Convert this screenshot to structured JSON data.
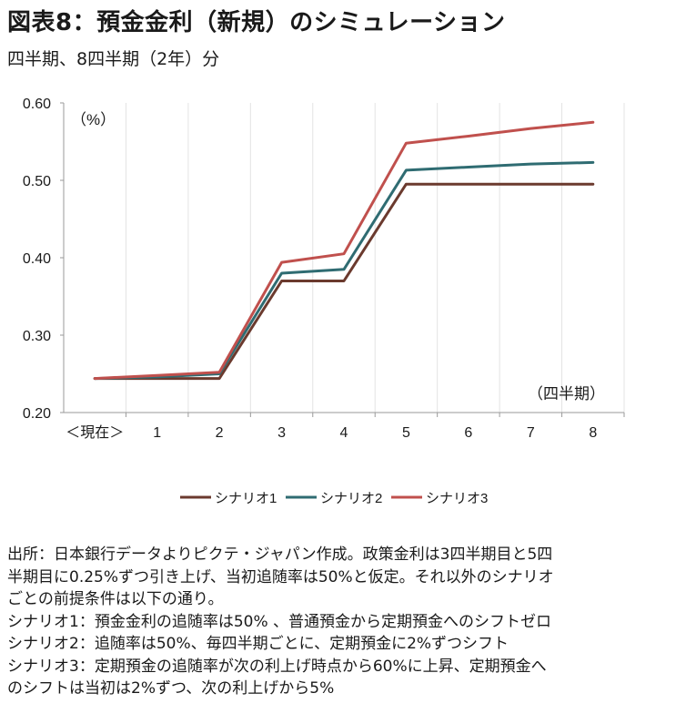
{
  "title": "図表8：預金金利（新規）のシミュレーション",
  "subtitle": "四半期、8四半期（2年）分",
  "chart_data": {
    "type": "line",
    "x": [
      "＜現在＞",
      "1",
      "2",
      "3",
      "4",
      "5",
      "6",
      "7",
      "8"
    ],
    "ylim": [
      0.2,
      0.6
    ],
    "yticks": [
      "0.20",
      "0.30",
      "0.40",
      "0.50",
      "0.60"
    ],
    "ylabel": "（%）",
    "xlabel": "（四半期）",
    "grid": "vertical",
    "legend_position": "bottom",
    "series": [
      {
        "name": "シナリオ1",
        "color": "#6b3a2e",
        "values": [
          0.244,
          0.244,
          0.244,
          0.37,
          0.37,
          0.495,
          0.495,
          0.495,
          0.495
        ]
      },
      {
        "name": "シナリオ2",
        "color": "#2f6c72",
        "values": [
          0.244,
          0.246,
          0.25,
          0.38,
          0.385,
          0.513,
          0.517,
          0.521,
          0.523
        ]
      },
      {
        "name": "シナリオ3",
        "color": "#c0504d",
        "values": [
          0.244,
          0.248,
          0.252,
          0.394,
          0.405,
          0.548,
          0.557,
          0.567,
          0.575
        ]
      }
    ]
  },
  "notes": [
    "出所：日本銀行データよりピクテ・ジャパン作成。政策金利は3四半期目と5四",
    "半期目に0.25%ずつ引き上げ、当初追随率は50%と仮定。それ以外のシナリオ",
    "ごとの前提条件は以下の通り。",
    "シナリオ1：預金金利の追随率は50% 、普通預金から定期預金へのシフトゼロ",
    "シナリオ2：追随率は50%、毎四半期ごとに、定期預金に2%ずつシフト",
    "シナリオ3：定期預金の追随率が次の利上げ時点から60%に上昇、定期預金へ",
    "のシフトは当初は2%ずつ、次の利上げから5%"
  ]
}
